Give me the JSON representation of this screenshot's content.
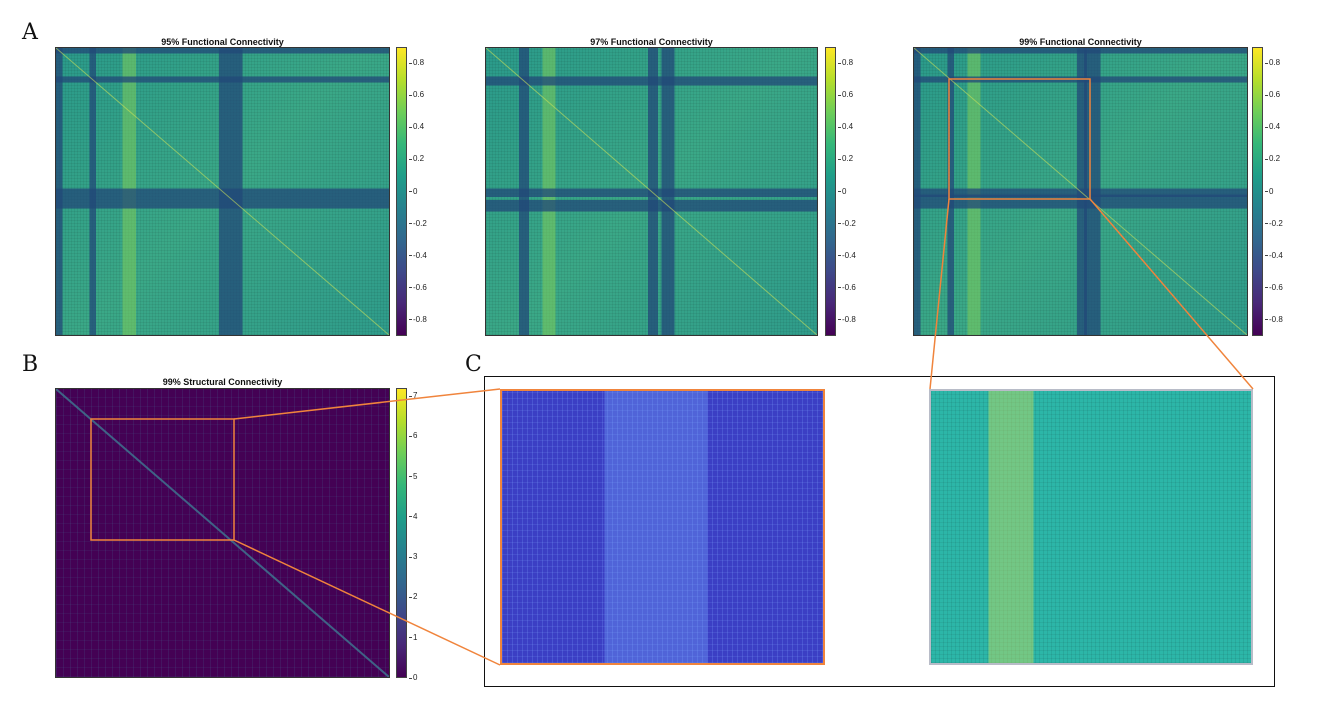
{
  "labels": {
    "A": "A",
    "B": "B",
    "C": "C"
  },
  "functional": [
    {
      "title": "95% Functional Connectivity"
    },
    {
      "title": "97% Functional Connectivity"
    },
    {
      "title": "99% Functional Connectivity"
    }
  ],
  "structural": {
    "title": "99% Structural Connectivity"
  },
  "colorbar_functional": {
    "range": [
      -0.9,
      0.9
    ],
    "ticks": [
      "0.8",
      "0.6",
      "0.4",
      "0.2",
      "0",
      "-0.2",
      "-0.4",
      "-0.6",
      "-0.8"
    ]
  },
  "colorbar_structural": {
    "range": [
      0,
      7.2
    ],
    "ticks": [
      "7",
      "6",
      "5",
      "4",
      "3",
      "2",
      "1",
      "0"
    ]
  },
  "colors": {
    "viridis_dark": "#440154",
    "viridis_mid": "#21918c",
    "viridis_light": "#fde725",
    "highlight": "#f0843c",
    "zoom_struct_bg": "#3b3fc4",
    "zoom_func_bg": "#2cb6a8"
  }
}
